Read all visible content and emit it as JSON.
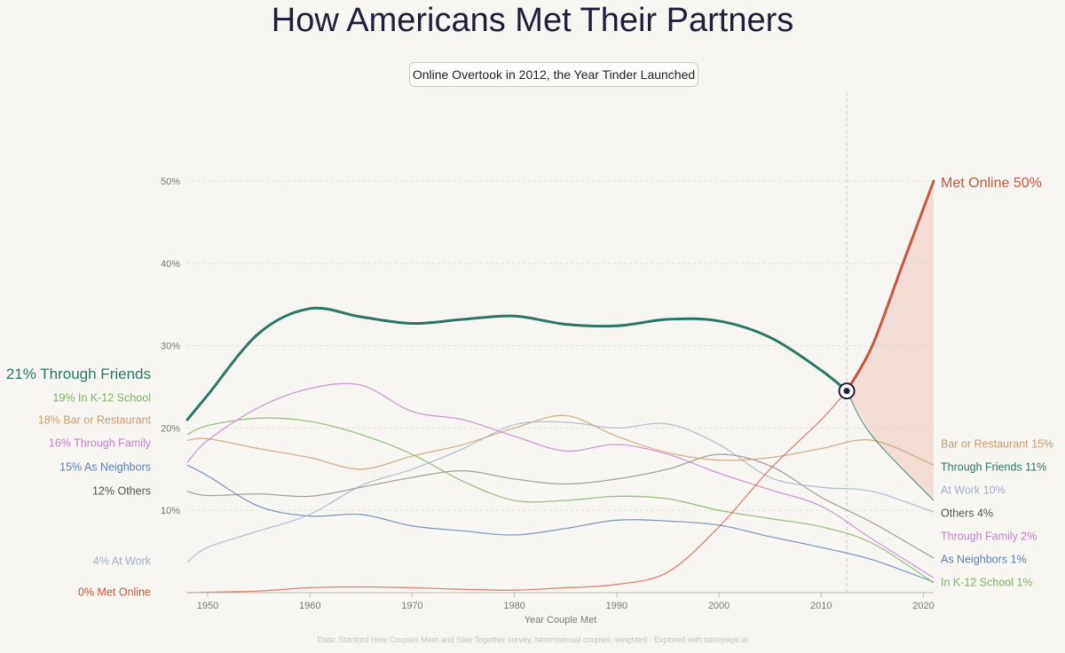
{
  "title": "How Americans Met Their Partners",
  "subtitle": "Online Overtook in 2012, the Year Tinder Launched",
  "footer": "Data: Stanford How Couples Meet and Stay Together survey, heterosexual couples, weighted  ·  Explored with tablepage.ai",
  "chart_data": {
    "type": "line",
    "title": "How Americans Met Their Partners",
    "subtitle": "Online Overtook in 2012, the Year Tinder Launched",
    "xlabel": "Year Couple Met",
    "ylabel": "",
    "xlim": [
      1948,
      2021
    ],
    "ylim": [
      0,
      50
    ],
    "xticks": [
      1950,
      1960,
      1970,
      1980,
      1990,
      2000,
      2010,
      2020
    ],
    "x_tick_labels": [
      "1950",
      "1960",
      "1970",
      "1980",
      "1990",
      "2000",
      "2010",
      "2020"
    ],
    "yticks": [
      10,
      20,
      30,
      40,
      50
    ],
    "y_tick_labels": [
      "10%",
      "20%",
      "30%",
      "40%",
      "50%"
    ],
    "grid": "horizontal dashed",
    "legend": "direct labels at line ends",
    "crossover": {
      "x": 2012.5,
      "y": 24.5
    },
    "series": [
      {
        "name": "Others",
        "color": "#888888",
        "width": 1.3,
        "start_label": "12%  Others",
        "end_label": "Others  4%",
        "points": [
          [
            1948,
            12.3
          ],
          [
            1950,
            11.8
          ],
          [
            1955,
            12.0
          ],
          [
            1960,
            11.7
          ],
          [
            1965,
            12.8
          ],
          [
            1970,
            14.0
          ],
          [
            1975,
            14.8
          ],
          [
            1980,
            13.8
          ],
          [
            1985,
            13.2
          ],
          [
            1990,
            13.8
          ],
          [
            1995,
            15.0
          ],
          [
            2000,
            16.8
          ],
          [
            2005,
            15.4
          ],
          [
            2010,
            11.6
          ],
          [
            2015,
            8.5
          ],
          [
            2021,
            4.2
          ]
        ]
      },
      {
        "name": "As Neighbors",
        "color": "#5b7fad",
        "width": 1.3,
        "start_label": "15%  As Neighbors",
        "end_label": "As Neighbors  1%",
        "points": [
          [
            1948,
            15.5
          ],
          [
            1950,
            14.2
          ],
          [
            1955,
            10.5
          ],
          [
            1960,
            9.3
          ],
          [
            1965,
            9.5
          ],
          [
            1970,
            8.1
          ],
          [
            1975,
            7.5
          ],
          [
            1980,
            7.0
          ],
          [
            1985,
            7.8
          ],
          [
            1990,
            8.8
          ],
          [
            1995,
            8.7
          ],
          [
            2000,
            8.2
          ],
          [
            2005,
            6.8
          ],
          [
            2010,
            5.5
          ],
          [
            2015,
            4.0
          ],
          [
            2021,
            1.3
          ]
        ]
      },
      {
        "name": "In K-12 School",
        "color": "#7db061",
        "width": 1.3,
        "start_label": "19%  In K-12 School",
        "end_label": "In K-12 School  1%",
        "points": [
          [
            1948,
            19.2
          ],
          [
            1950,
            20.3
          ],
          [
            1955,
            21.2
          ],
          [
            1960,
            20.8
          ],
          [
            1965,
            19.2
          ],
          [
            1970,
            16.8
          ],
          [
            1975,
            13.5
          ],
          [
            1980,
            11.2
          ],
          [
            1985,
            11.2
          ],
          [
            1990,
            11.7
          ],
          [
            1995,
            11.4
          ],
          [
            2000,
            10.0
          ],
          [
            2005,
            9.0
          ],
          [
            2010,
            8.0
          ],
          [
            2015,
            6.0
          ],
          [
            2021,
            1.2
          ]
        ]
      },
      {
        "name": "Bar or Restaurant",
        "color": "#c79a6d",
        "width": 1.3,
        "start_label": "18%  Bar or Restaurant",
        "end_label": "Bar or Restaurant  15%",
        "points": [
          [
            1948,
            18.5
          ],
          [
            1950,
            18.7
          ],
          [
            1955,
            17.5
          ],
          [
            1960,
            16.4
          ],
          [
            1965,
            15.0
          ],
          [
            1970,
            16.6
          ],
          [
            1975,
            18.0
          ],
          [
            1980,
            20.0
          ],
          [
            1985,
            21.5
          ],
          [
            1990,
            19.0
          ],
          [
            1995,
            17.0
          ],
          [
            2000,
            16.1
          ],
          [
            2005,
            16.4
          ],
          [
            2010,
            17.5
          ],
          [
            2015,
            18.5
          ],
          [
            2021,
            15.5
          ]
        ]
      },
      {
        "name": "At Work",
        "color": "#9fb0c8",
        "width": 1.3,
        "start_label": "4%  At Work",
        "end_label": "At Work  10%",
        "points": [
          [
            1948,
            3.7
          ],
          [
            1950,
            5.5
          ],
          [
            1955,
            7.5
          ],
          [
            1960,
            9.5
          ],
          [
            1965,
            13.0
          ],
          [
            1970,
            15.0
          ],
          [
            1975,
            17.5
          ],
          [
            1980,
            20.4
          ],
          [
            1985,
            20.7
          ],
          [
            1990,
            20.0
          ],
          [
            1995,
            20.5
          ],
          [
            2000,
            18.0
          ],
          [
            2005,
            14.0
          ],
          [
            2010,
            12.8
          ],
          [
            2015,
            12.3
          ],
          [
            2021,
            9.8
          ]
        ]
      },
      {
        "name": "Through Family",
        "color": "#c27fc9",
        "width": 1.3,
        "start_label": "16%  Through Family",
        "end_label": "Through Family  2%",
        "points": [
          [
            1948,
            15.8
          ],
          [
            1950,
            18.5
          ],
          [
            1955,
            22.5
          ],
          [
            1960,
            24.8
          ],
          [
            1965,
            25.2
          ],
          [
            1970,
            22.0
          ],
          [
            1975,
            21.0
          ],
          [
            1980,
            19.0
          ],
          [
            1985,
            17.2
          ],
          [
            1990,
            18.0
          ],
          [
            1995,
            16.8
          ],
          [
            2000,
            14.5
          ],
          [
            2005,
            12.5
          ],
          [
            2010,
            10.5
          ],
          [
            2015,
            6.5
          ],
          [
            2021,
            1.8
          ]
        ]
      },
      {
        "name": "Met Online",
        "color": "#c8553d",
        "width": 1.3,
        "start_label": "0%  Met Online",
        "end_label": "Met Online  50%",
        "points": [
          [
            1948,
            0
          ],
          [
            1955,
            0.2
          ],
          [
            1960,
            0.6
          ],
          [
            1965,
            0.7
          ],
          [
            1970,
            0.6
          ],
          [
            1975,
            0.4
          ],
          [
            1980,
            0.3
          ],
          [
            1985,
            0.6
          ],
          [
            1990,
            1.0
          ],
          [
            1995,
            2.5
          ],
          [
            2000,
            8.0
          ],
          [
            2005,
            15.0
          ],
          [
            2010,
            21.0
          ],
          [
            2012.5,
            24.5
          ],
          [
            2015,
            30.0
          ],
          [
            2018,
            40.0
          ],
          [
            2021,
            50.0
          ]
        ]
      },
      {
        "name": "Through Friends",
        "color": "#2e7466",
        "width": 3,
        "start_label": "21%  Through Friends",
        "end_label": "Through Friends  11%",
        "points": [
          [
            1948,
            21.0
          ],
          [
            1950,
            24.0
          ],
          [
            1955,
            31.5
          ],
          [
            1960,
            34.5
          ],
          [
            1965,
            33.5
          ],
          [
            1970,
            32.7
          ],
          [
            1975,
            33.2
          ],
          [
            1980,
            33.6
          ],
          [
            1985,
            32.6
          ],
          [
            1990,
            32.4
          ],
          [
            1995,
            33.2
          ],
          [
            2000,
            33.0
          ],
          [
            2005,
            31.0
          ],
          [
            2010,
            27.0
          ],
          [
            2012.5,
            24.5
          ],
          [
            2015,
            19.0
          ],
          [
            2021,
            11.2
          ]
        ]
      }
    ]
  }
}
